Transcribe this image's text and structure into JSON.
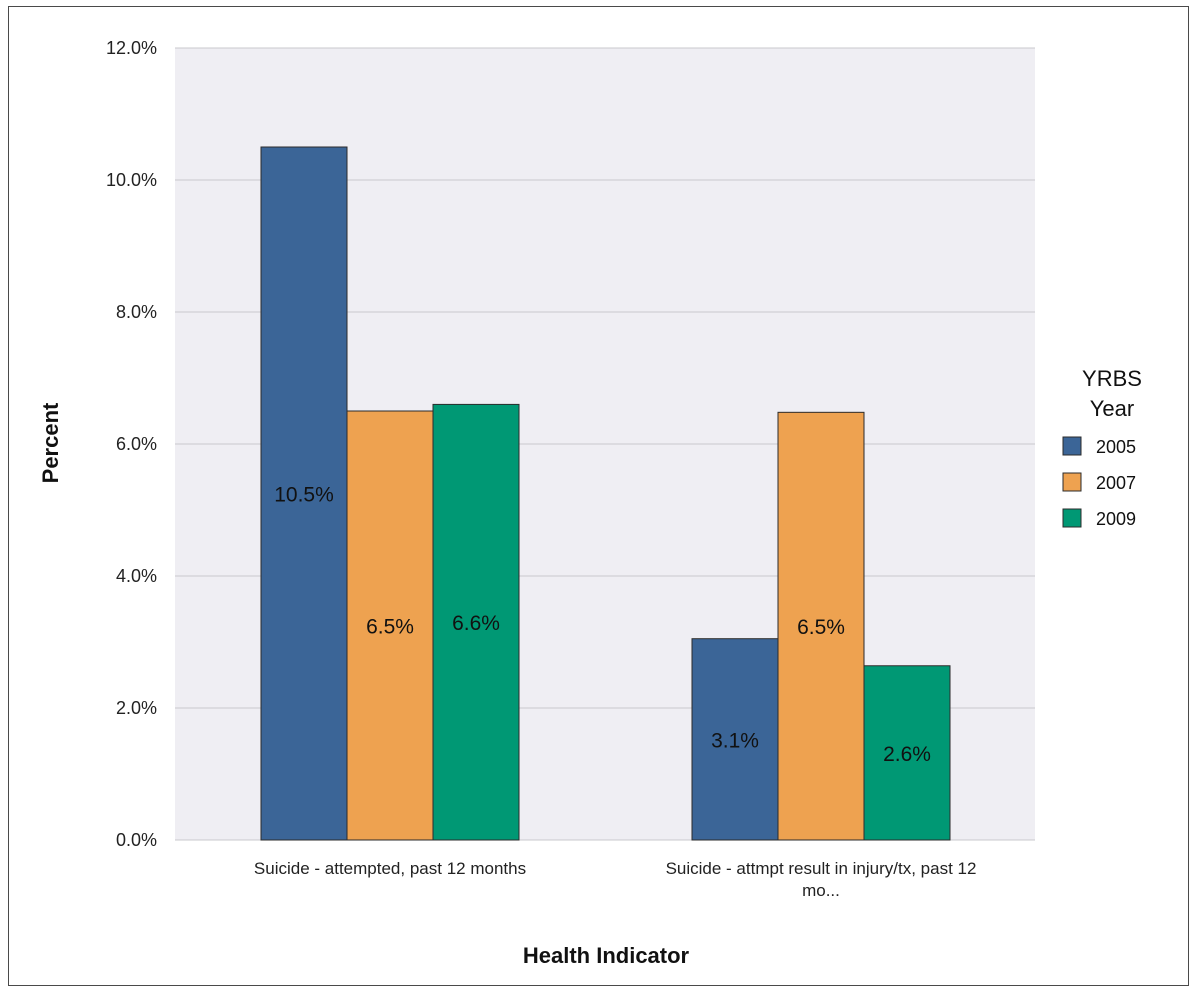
{
  "chart_data": {
    "type": "bar",
    "xlabel": "Health Indicator",
    "ylabel": "Percent",
    "ylim": [
      0,
      12
    ],
    "yticks": [
      "0.0%",
      "2.0%",
      "4.0%",
      "6.0%",
      "8.0%",
      "10.0%",
      "12.0%"
    ],
    "categories": [
      [
        "Suicide - attempted, past 12 months"
      ],
      [
        "Suicide - attmpt result in injury/tx, past 12",
        "mo..."
      ]
    ],
    "series": [
      {
        "name": "2005",
        "color": "#3b6597",
        "values": [
          10.5,
          3.05
        ],
        "labels": [
          "10.5%",
          "3.1%"
        ]
      },
      {
        "name": "2007",
        "color": "#eea250",
        "values": [
          6.5,
          6.48
        ],
        "labels": [
          "6.5%",
          "6.5%"
        ]
      },
      {
        "name": "2009",
        "color": "#009874",
        "values": [
          6.6,
          2.64
        ],
        "labels": [
          "6.6%",
          "2.6%"
        ]
      }
    ],
    "legend": {
      "title": [
        "YRBS",
        "Year"
      ],
      "position": "right"
    },
    "grid": true,
    "plot_background": "#efeef3"
  }
}
